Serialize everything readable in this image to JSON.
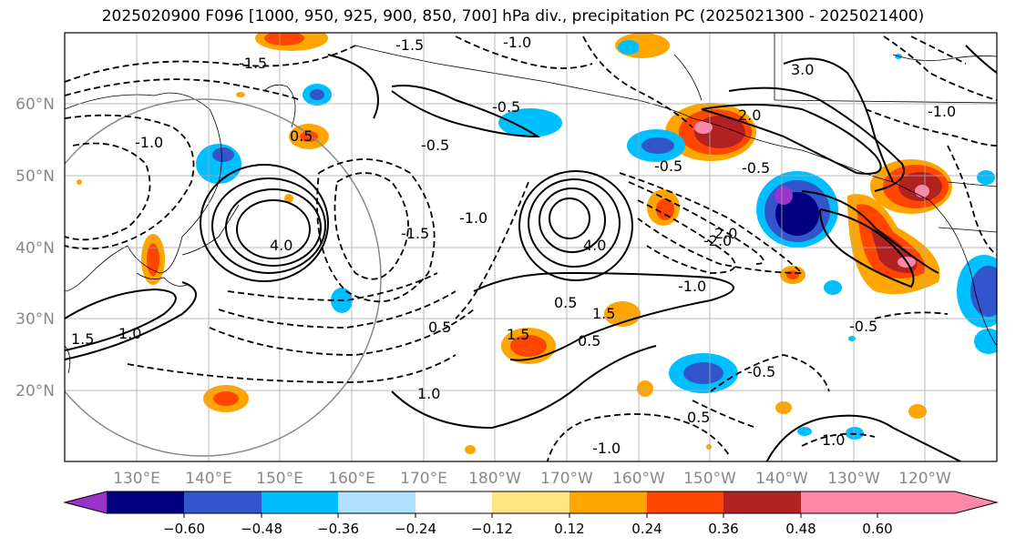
{
  "title": "2025020900 F096 [1000, 950, 925, 900, 850, 700] hPa div., precipitation PC (2025021300 - 2025021400)",
  "lat_labels": [
    "60°N",
    "50°N",
    "40°N",
    "30°N",
    "20°N"
  ],
  "lon_labels": [
    "130°E",
    "140°E",
    "150°E",
    "160°E",
    "170°E",
    "180°W",
    "170°W",
    "160°W",
    "150°W",
    "140°W",
    "130°W",
    "120°W"
  ],
  "colorbar": {
    "ticks": [
      "−0.60",
      "−0.48",
      "−0.36",
      "−0.24",
      "−0.12",
      "0.12",
      "0.24",
      "0.36",
      "0.48",
      "0.60"
    ],
    "colors": [
      "#9933cc",
      "#000080",
      "#3355cc",
      "#00bfff",
      "#b0e2ff",
      "#ffffff",
      "#ffe680",
      "#ffa500",
      "#ff4500",
      "#b22222",
      "#ff88aa"
    ]
  },
  "contour_labels": {
    "solid": [
      "4.0",
      "4.0",
      "3.0",
      "2.0",
      "2.0",
      "1.5",
      "1.5",
      "1.0",
      "1.0",
      "0.5",
      "0.5",
      "0.5",
      "0.5",
      "0.5",
      "1.5",
      "1.0"
    ],
    "dashed": [
      "-1.5",
      "-1.5",
      "-1.0",
      "-1.0",
      "-0.5",
      "-0.5",
      "-0.5",
      "-0.5",
      "-2.0",
      "-1.0",
      "-1.5",
      "-1.0",
      "-0.5",
      "-1.0",
      "-0.5",
      "-1.0"
    ]
  }
}
